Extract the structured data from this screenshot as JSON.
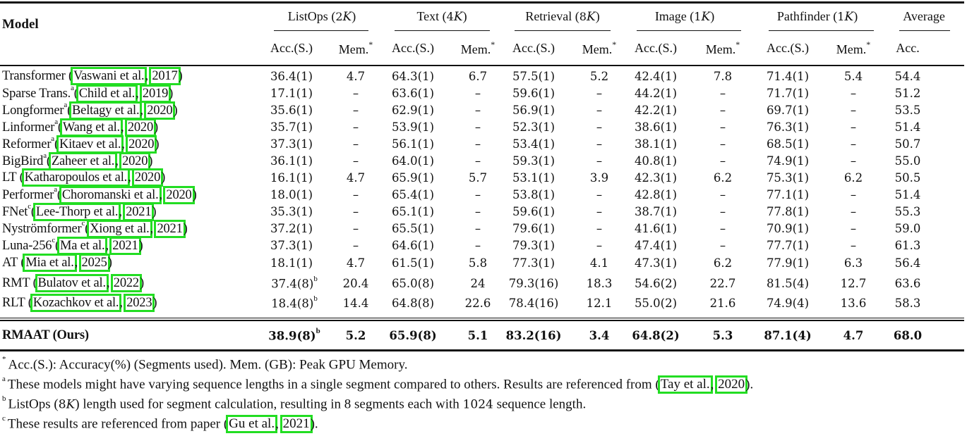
{
  "table": {
    "header": {
      "model_label": "Model",
      "groups": [
        {
          "name": "ListOps",
          "len_num": "2",
          "len_unit": "K"
        },
        {
          "name": "Text",
          "len_num": "4",
          "len_unit": "K"
        },
        {
          "name": "Retrieval",
          "len_num": "8",
          "len_unit": "K"
        },
        {
          "name": "Image",
          "len_num": "1",
          "len_unit": "K"
        },
        {
          "name": "Pathfinder",
          "len_num": "1",
          "len_unit": "K"
        },
        {
          "name": "Average"
        }
      ],
      "acc_label": "Acc.(S.)",
      "mem_label": "Mem.",
      "mem_marker": "*",
      "avg_label": "Acc."
    },
    "rows": [
      {
        "model": "Transformer",
        "sup": "",
        "author": "Vaswani et al.",
        "year": "2017",
        "values": [
          "36.4(1)",
          "4.7",
          "64.3(1)",
          "6.7",
          "57.5(1)",
          "5.2",
          "42.4(1)",
          "7.8",
          "71.4(1)",
          "5.4",
          "54.4"
        ],
        "listops_sup": ""
      },
      {
        "model": "Sparse Trans.",
        "sup": "a",
        "author": "Child et al.",
        "year": "2019",
        "values": [
          "17.1(1)",
          "–",
          "63.6(1)",
          "–",
          "59.6(1)",
          "–",
          "44.2(1)",
          "–",
          "71.7(1)",
          "–",
          "51.2"
        ],
        "listops_sup": ""
      },
      {
        "model": "Longformer",
        "sup": "a",
        "author": "Beltagy et al.",
        "year": "2020",
        "values": [
          "35.6(1)",
          "–",
          "62.9(1)",
          "–",
          "56.9(1)",
          "–",
          "42.2(1)",
          "–",
          "69.7(1)",
          "–",
          "53.5"
        ],
        "listops_sup": ""
      },
      {
        "model": "Linformer",
        "sup": "a",
        "author": "Wang et al.",
        "year": "2020",
        "values": [
          "35.7(1)",
          "–",
          "53.9(1)",
          "–",
          "52.3(1)",
          "–",
          "38.6(1)",
          "–",
          "76.3(1)",
          "–",
          "51.4"
        ],
        "listops_sup": ""
      },
      {
        "model": "Reformer",
        "sup": "a",
        "author": "Kitaev et al.",
        "year": "2020",
        "values": [
          "37.3(1)",
          "–",
          "56.1(1)",
          "–",
          "53.4(1)",
          "–",
          "38.1(1)",
          "–",
          "68.5(1)",
          "–",
          "50.7"
        ],
        "listops_sup": ""
      },
      {
        "model": "BigBird",
        "sup": "a",
        "author": "Zaheer et al.",
        "year": "2020",
        "values": [
          "36.1(1)",
          "–",
          "64.0(1)",
          "–",
          "59.3(1)",
          "–",
          "40.8(1)",
          "–",
          "74.9(1)",
          "–",
          "55.0"
        ],
        "listops_sup": ""
      },
      {
        "model": "LT",
        "sup": "",
        "author": "Katharopoulos et al.",
        "year": "2020",
        "values": [
          "16.1(1)",
          "4.7",
          "65.9(1)",
          "5.7",
          "53.1(1)",
          "3.9",
          "42.3(1)",
          "6.2",
          "75.3(1)",
          "6.2",
          "50.5"
        ],
        "listops_sup": ""
      },
      {
        "model": "Performer",
        "sup": "a",
        "author": "Choromanski et al.",
        "year": "2020",
        "values": [
          "18.0(1)",
          "–",
          "65.4(1)",
          "–",
          "53.8(1)",
          "–",
          "42.8(1)",
          "–",
          "77.1(1)",
          "–",
          "51.4"
        ],
        "listops_sup": ""
      },
      {
        "model": "FNet",
        "sup": "c",
        "author": "Lee-Thorp et al.",
        "year": "2021",
        "values": [
          "35.3(1)",
          "–",
          "65.1(1)",
          "–",
          "59.6(1)",
          "–",
          "38.7(1)",
          "–",
          "77.8(1)",
          "–",
          "55.3"
        ],
        "listops_sup": ""
      },
      {
        "model": "Nyströmformer",
        "sup": "c",
        "author": "Xiong et al.",
        "year": "2021",
        "values": [
          "37.2(1)",
          "–",
          "65.5(1)",
          "–",
          "79.6(1)",
          "–",
          "41.6(1)",
          "–",
          "70.9(1)",
          "–",
          "59.0"
        ],
        "listops_sup": ""
      },
      {
        "model": "Luna-256",
        "sup": "c",
        "author": "Ma et al.",
        "year": "2021",
        "values": [
          "37.3(1)",
          "–",
          "64.6(1)",
          "–",
          "79.3(1)",
          "–",
          "47.4(1)",
          "–",
          "77.7(1)",
          "–",
          "61.3"
        ],
        "listops_sup": ""
      },
      {
        "model": "AT",
        "sup": "",
        "author": "Mia et al.",
        "year": "2025",
        "values": [
          "18.1(1)",
          "4.7",
          "61.5(1)",
          "5.8",
          "77.3(1)",
          "4.1",
          "47.3(1)",
          "6.2",
          "77.9(1)",
          "6.3",
          "56.4"
        ],
        "listops_sup": ""
      },
      {
        "model": "RMT",
        "sup": "",
        "author": "Bulatov et al.",
        "year": "2022",
        "values": [
          "37.4(8)",
          "20.4",
          "65.0(8)",
          "24",
          "79.3(16)",
          "18.3",
          "54.6(2)",
          "22.7",
          "81.5(4)",
          "12.7",
          "63.6"
        ],
        "listops_sup": "b"
      },
      {
        "model": "RLT",
        "sup": "",
        "author": "Kozachkov et al.",
        "year": "2023",
        "values": [
          "18.4(8)",
          "14.4",
          "64.8(8)",
          "22.6",
          "78.4(16)",
          "12.1",
          "55.0(2)",
          "21.6",
          "74.9(4)",
          "13.6",
          "58.3"
        ],
        "listops_sup": "b"
      }
    ],
    "ours": {
      "model": "RMAAT (Ours)",
      "values": [
        "38.9(8)",
        "5.2",
        "65.9(8)",
        "5.1",
        "83.2(16)",
        "3.4",
        "64.8(2)",
        "5.3",
        "87.1(4)",
        "4.7",
        "68.0"
      ],
      "listops_sup": "b"
    }
  },
  "footnotes": [
    {
      "marker": "*",
      "text": "Acc.(S.): Accuracy(%) (Segments used). Mem. (GB): Peak GPU Memory."
    },
    {
      "marker": "a",
      "text": "These models might have varying sequence lengths in a single segment compared to others. Results are referenced from (",
      "cite_author": "Tay et al.",
      "cite_year": "2020",
      "tail": ")."
    },
    {
      "marker": "b",
      "pre": "ListOps (",
      "num": "8",
      "unit": "K",
      "mid": ") length used for segment calculation, resulting in 8 segments each with ",
      "num2": "1024",
      "post": " sequence length."
    },
    {
      "marker": "c",
      "text": "These results are referenced from paper (",
      "cite_author": "Gu et al.",
      "cite_year": "2021",
      "tail": ")."
    }
  ],
  "colors": {
    "text": "#111111",
    "citation_box": "#22dd22",
    "background": "#ffffff"
  }
}
